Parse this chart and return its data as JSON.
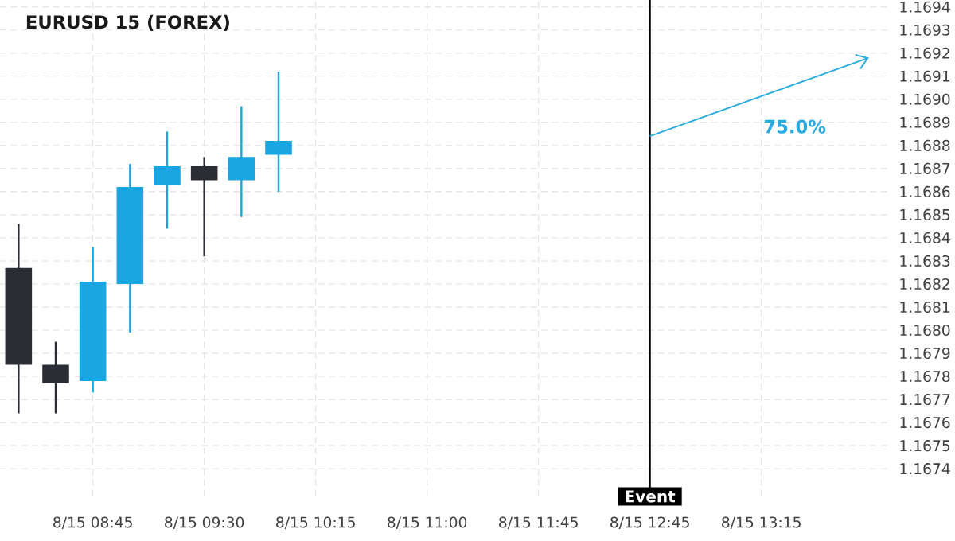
{
  "chart_data": {
    "type": "candlestick",
    "title": "EURUSD 15 (FOREX)",
    "categories": [
      null,
      null,
      "8/15 08:45",
      null,
      null,
      "8/15 09:30",
      null,
      null,
      "8/15 10:15",
      null,
      null,
      "8/15 11:00",
      null,
      null,
      "8/15 11:45",
      null,
      null,
      "8/15 12:45",
      null,
      null,
      "8/15 13:15",
      null,
      null,
      null
    ],
    "ohlc": [
      [
        1.16827,
        1.16846,
        1.16764,
        1.16785
      ],
      [
        1.16785,
        1.16795,
        1.16764,
        1.16777
      ],
      [
        1.16778,
        1.16836,
        1.16773,
        1.16821
      ],
      [
        1.1682,
        1.16872,
        1.16799,
        1.16862
      ],
      [
        1.16863,
        1.16886,
        1.16844,
        1.16871
      ],
      [
        1.16871,
        1.16875,
        1.16832,
        1.16865
      ],
      [
        1.16865,
        1.16897,
        1.16849,
        1.16875
      ],
      [
        1.16876,
        1.16912,
        1.1686,
        1.16882
      ],
      null,
      null,
      null,
      null,
      null,
      null,
      null,
      null,
      null,
      null,
      null,
      null,
      null,
      null,
      null,
      null
    ],
    "colors": [
      "#2b2d35",
      "#2b2d35",
      "#1aa6e0",
      "#1aa6e0",
      "#1aa6e0",
      "#2b2d35",
      "#1aa6e0",
      "#1aa6e0",
      null,
      null,
      null,
      null,
      null,
      null,
      null,
      null,
      null,
      null,
      null,
      null,
      null,
      null,
      null,
      null
    ],
    "annotations": [
      "75.0%"
    ],
    "ref_lines": [
      {
        "axis": "x",
        "value": "8/15 12:45",
        "label": "Event",
        "color": "#000000"
      }
    ],
    "ylim": [
      1.16728,
      1.16943
    ],
    "yticks": [
      {
        "value": 1.1674,
        "label": "1.1674"
      },
      {
        "value": 1.1675,
        "label": "1.1675"
      },
      {
        "value": 1.1676,
        "label": "1.1676"
      },
      {
        "value": 1.1677,
        "label": "1.1677"
      },
      {
        "value": 1.1678,
        "label": "1.1678"
      },
      {
        "value": 1.1679,
        "label": "1.1679"
      },
      {
        "value": 1.168,
        "label": "1.1680"
      },
      {
        "value": 1.1681,
        "label": "1.1681"
      },
      {
        "value": 1.1682,
        "label": "1.1682"
      },
      {
        "value": 1.1683,
        "label": "1.1683"
      },
      {
        "value": 1.1684,
        "label": "1.1684"
      },
      {
        "value": 1.1685,
        "label": "1.1685"
      },
      {
        "value": 1.1686,
        "label": "1.1686"
      },
      {
        "value": 1.1687,
        "label": "1.1687"
      },
      {
        "value": 1.1688,
        "label": "1.1688"
      },
      {
        "value": 1.1689,
        "label": "1.1689"
      },
      {
        "value": 1.169,
        "label": "1.1690"
      },
      {
        "value": 1.1691,
        "label": "1.1691"
      },
      {
        "value": 1.1692,
        "label": "1.1692"
      },
      {
        "value": 1.1693,
        "label": "1.1693"
      },
      {
        "value": 1.1694,
        "label": "1.1694"
      }
    ],
    "grid": true
  }
}
